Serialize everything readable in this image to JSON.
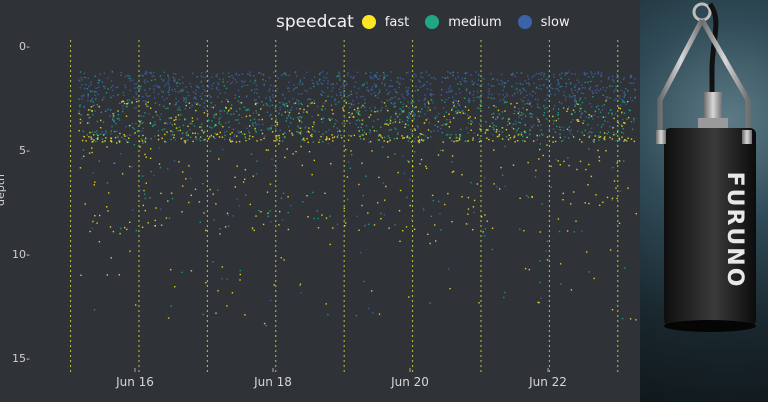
{
  "chart_data": {
    "type": "scatter",
    "legend": {
      "title": "speedcat",
      "position": "top",
      "entries": [
        {
          "name": "fast",
          "color": "#fde725"
        },
        {
          "name": "medium",
          "color": "#21a685"
        },
        {
          "name": "slow",
          "color": "#3b64a8"
        }
      ]
    },
    "ylabel": "depth",
    "y_axis": {
      "reversed": true,
      "ticks": [
        "0",
        "5",
        "10",
        "15"
      ],
      "range": [
        0,
        15
      ]
    },
    "x_axis": {
      "range": [
        "Jun 15",
        "Jun 23"
      ],
      "ticks": [
        "Jun 16",
        "Jun 18",
        "Jun 20",
        "Jun 22"
      ]
    },
    "day_boundaries": [
      "Jun 15",
      "Jun 16",
      "Jun 17",
      "Jun 18",
      "Jun 19",
      "Jun 20",
      "Jun 21",
      "Jun 22",
      "Jun 23"
    ],
    "background": "#2f3337",
    "grid": false
  },
  "photo": {
    "brand_text": "FURUNO"
  }
}
